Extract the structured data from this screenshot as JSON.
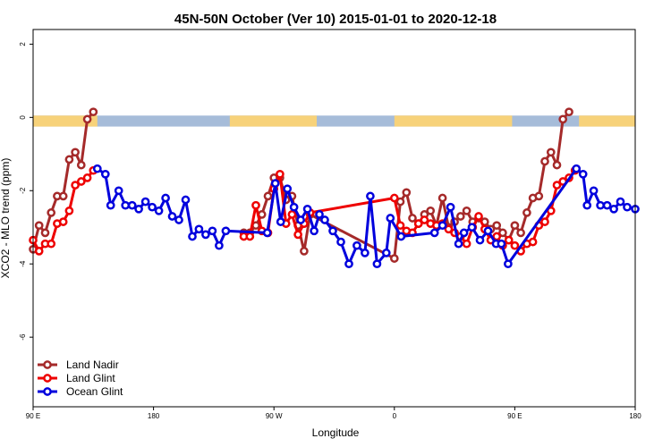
{
  "chart_data": {
    "type": "line",
    "title": "45N-50N October (Ver 10)   2015-01-01 to 2020-12-18",
    "xlabel": "Longitude",
    "ylabel": "XCO2 - MLO trend (ppm)",
    "xlim": [
      0,
      450
    ],
    "ylim": [
      -7.9,
      2.4
    ],
    "x_ticks": [
      {
        "x": 0,
        "label": "90 E"
      },
      {
        "x": 90,
        "label": "180"
      },
      {
        "x": 180,
        "label": "90 W"
      },
      {
        "x": 270,
        "label": "0"
      },
      {
        "x": 360,
        "label": "90 E"
      },
      {
        "x": 450,
        "label": "180"
      }
    ],
    "y_ticks": [
      {
        "y": 2,
        "label": "2"
      },
      {
        "y": 0,
        "label": "0"
      },
      {
        "y": -2,
        "label": "-2"
      },
      {
        "y": -4,
        "label": "-4"
      },
      {
        "y": -6,
        "label": "-6"
      }
    ],
    "grid": false,
    "legend_position": "bottom-left",
    "surface_band": {
      "y_range": [
        -0.25,
        0.05
      ],
      "land_color": "#f7d27a",
      "ocean_color": "#a6bcd9",
      "land_segments": [
        [
          0,
          48
        ],
        [
          147,
          212
        ],
        [
          270,
          358
        ],
        [
          408,
          450
        ]
      ]
    },
    "series": [
      {
        "name": "Land Nadir",
        "color": "#a52a2a",
        "x": [
          0,
          4.5,
          9,
          13.5,
          18,
          22.5,
          27,
          31.5,
          36,
          40.5,
          45,
          48,
          157.5,
          162,
          166.5,
          171,
          175.5,
          180,
          184.5,
          189,
          193.5,
          198,
          202.5,
          207,
          270,
          274.5,
          279,
          283.5,
          288,
          292.5,
          297,
          301.5,
          306,
          310.5,
          315,
          319.5,
          324,
          328.5,
          333,
          337.5,
          342,
          346.5,
          351,
          355.5,
          360,
          364.5,
          369,
          373.5,
          378,
          382.5,
          387,
          391.5,
          396,
          400.5,
          405,
          408
        ],
        "y": [
          -3.6,
          -2.95,
          -3.15,
          -2.6,
          -2.15,
          -2.15,
          -1.15,
          -0.95,
          -1.3,
          -0.05,
          0.15,
          null,
          -3.15,
          -3.15,
          -2.95,
          -2.65,
          -2.15,
          -1.65,
          -1.65,
          -2.25,
          -2.15,
          -2.95,
          -3.65,
          -2.65,
          -3.85,
          -2.3,
          -2.05,
          -2.75,
          -2.9,
          -2.65,
          -2.55,
          -2.95,
          -2.2,
          -3.0,
          -2.85,
          -2.7,
          -2.55,
          -2.85,
          -2.75,
          -2.85,
          -3.05,
          -2.95,
          -3.15,
          -3.35,
          -2.95,
          -3.15,
          -2.6,
          -2.2,
          -2.15,
          -1.2,
          -0.95,
          -1.3,
          -0.05,
          0.15,
          null,
          null
        ]
      },
      {
        "name": "Land Glint",
        "color": "#ee0000",
        "x": [
          0,
          4.5,
          9,
          13.5,
          18,
          22.5,
          27,
          31.5,
          36,
          40.5,
          45,
          48,
          157.5,
          162,
          166.5,
          171,
          175.5,
          180,
          184.5,
          189,
          193.5,
          198,
          202.5,
          207,
          270,
          274.5,
          279,
          283.5,
          288,
          292.5,
          297,
          301.5,
          306,
          310.5,
          315,
          319.5,
          324,
          328.5,
          333,
          337.5,
          342,
          346.5,
          351,
          355.5,
          360,
          364.5,
          369,
          373.5,
          378,
          382.5,
          387,
          391.5,
          396,
          400.5,
          405,
          408
        ],
        "y": [
          -3.35,
          -3.65,
          -3.45,
          -3.45,
          -2.9,
          -2.85,
          -2.55,
          -1.85,
          -1.75,
          -1.65,
          -1.45,
          null,
          -3.25,
          -3.25,
          -2.4,
          -3.1,
          -3.15,
          -1.95,
          -1.55,
          -2.9,
          -2.65,
          -3.2,
          -2.9,
          -2.6,
          -2.2,
          -2.95,
          -3.1,
          -3.15,
          -2.9,
          -2.8,
          -2.9,
          -2.95,
          -2.9,
          -3.05,
          -3.15,
          -3.25,
          -3.45,
          -3.0,
          -2.7,
          -3.05,
          -3.35,
          -3.25,
          -3.5,
          -3.35,
          -3.5,
          -3.65,
          -3.45,
          -3.4,
          -2.95,
          -2.85,
          -2.55,
          -1.85,
          -1.75,
          -1.65,
          -1.45,
          null
        ]
      },
      {
        "name": "Ocean Glint",
        "color": "#0000dd",
        "x": [
          48,
          54,
          58,
          64,
          69,
          74,
          79,
          84,
          89,
          94,
          99,
          104,
          109,
          114,
          119,
          124,
          129,
          134,
          139,
          144,
          175,
          181,
          185,
          190,
          195,
          200,
          205,
          210,
          214,
          218,
          224,
          230,
          236,
          242,
          248,
          252,
          257,
          264,
          267,
          275,
          300,
          306,
          312,
          318,
          322,
          328,
          334,
          340,
          346,
          350,
          355,
          406,
          411,
          414,
          419,
          424,
          429,
          434,
          439,
          444,
          450
        ],
        "y": [
          -1.4,
          -1.55,
          -2.4,
          -2.0,
          -2.4,
          -2.4,
          -2.5,
          -2.3,
          -2.45,
          -2.55,
          -2.2,
          -2.7,
          -2.8,
          -2.25,
          -3.25,
          -3.05,
          -3.2,
          -3.1,
          -3.5,
          -3.1,
          -3.15,
          -1.8,
          -2.85,
          -1.95,
          -2.45,
          -2.8,
          -2.5,
          -3.1,
          -2.65,
          -2.8,
          -3.1,
          -3.4,
          -4.0,
          -3.5,
          -3.7,
          -2.15,
          -4.0,
          -3.7,
          -2.75,
          -3.25,
          -3.15,
          -2.95,
          -2.45,
          -3.45,
          -3.15,
          -3.0,
          -3.35,
          -3.1,
          -3.45,
          -3.45,
          -4.0,
          -1.4,
          -1.55,
          -2.4,
          -2.0,
          -2.4,
          -2.4,
          -2.5,
          -2.3,
          -2.45,
          -2.5
        ]
      }
    ]
  }
}
